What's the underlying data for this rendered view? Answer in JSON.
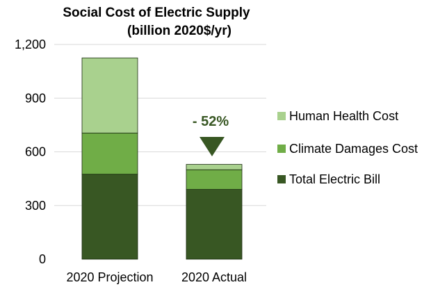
{
  "chart_data": {
    "type": "bar",
    "stacked": true,
    "title": "Social Cost of Electric Supply",
    "subtitle": "(billion 2020$/yr)",
    "xlabel": "",
    "ylabel": "",
    "categories": [
      "2020 Projection",
      "2020 Actual"
    ],
    "ylim": [
      0,
      1200
    ],
    "yticks": [
      0,
      300,
      600,
      900,
      1200
    ],
    "ytick_labels": [
      "0",
      "300",
      "600",
      "900",
      "1,200"
    ],
    "grid": true,
    "legend_position": "right",
    "series": [
      {
        "name": "Total Electric Bill",
        "values": [
          475,
          390
        ],
        "color": "#385723"
      },
      {
        "name": "Climate Damages Cost",
        "values": [
          230,
          110
        ],
        "color": "#70AD47"
      },
      {
        "name": "Human Health Cost",
        "values": [
          420,
          30
        ],
        "color": "#A9D18E"
      }
    ],
    "legend_order": [
      "Human Health Cost",
      "Climate Damages Cost",
      "Total Electric Bill"
    ],
    "annotation": {
      "text": "- 52%",
      "color": "#385723",
      "marker": "down-triangle"
    }
  }
}
